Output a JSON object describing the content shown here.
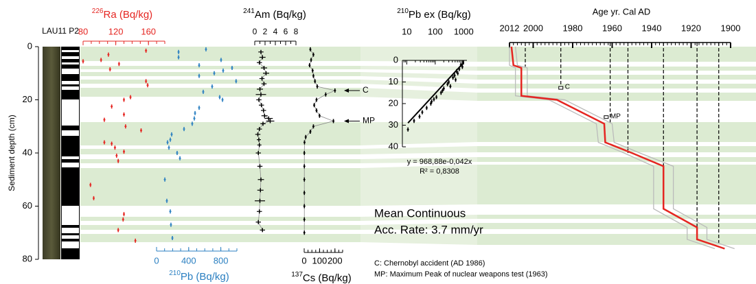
{
  "core_label": "LAU11 P2",
  "depth_axis": {
    "label": "Sediment depth (cm)",
    "lim": [
      0,
      80
    ],
    "ticks": [
      0,
      20,
      40,
      60,
      80
    ]
  },
  "notes": {
    "rate": [
      "Mean Continuous",
      "Acc. Rate: 3.7 mm/yr"
    ],
    "legend": [
      "C: Chernobyl accident (AD 1986)",
      "MP: Maximum Peak of nuclear weapons test (1963)"
    ]
  },
  "chart_data": [
    {
      "type": "scatter",
      "title_sup": "226",
      "title": "Ra (Bq/kg)",
      "color": "#e52521",
      "xlim": [
        80,
        180
      ],
      "xticks": [
        80,
        120,
        160
      ],
      "minor_step": 10,
      "x": [
        157,
        111,
        102,
        80,
        124,
        113,
        157,
        159,
        138,
        130,
        115,
        130,
        106,
        132,
        151,
        106,
        115,
        119,
        130,
        121,
        123,
        89,
        93,
        130,
        129,
        123,
        144
      ],
      "y": [
        1.5,
        3,
        5,
        5.5,
        6.5,
        8.5,
        13,
        14.5,
        19,
        20,
        22.5,
        25.5,
        27.5,
        30,
        31.5,
        36,
        36.5,
        38,
        39.5,
        41,
        43,
        52,
        57,
        63,
        65,
        69,
        73
      ]
    },
    {
      "type": "scatter",
      "title_sup": "210",
      "title": "Pb (Bq/kg)",
      "color": "#2a7fc1",
      "xlim": [
        0,
        1000
      ],
      "xticks": [
        0,
        400,
        800
      ],
      "minor_step": 100,
      "x": [
        615,
        274,
        274,
        803,
        530,
        940,
        829,
        718,
        530,
        990,
        692,
        581,
        786,
        821,
        530,
        479,
        470,
        444,
        342,
        188,
        171,
        137,
        154,
        256,
        291,
        103,
        128,
        171,
        179,
        197
      ],
      "y": [
        1,
        2,
        4,
        5,
        7,
        8,
        9,
        10,
        11,
        13,
        15,
        17,
        19,
        20,
        23,
        25,
        27,
        29,
        31,
        33,
        35,
        36,
        38,
        40,
        42,
        50,
        58,
        62,
        67,
        72
      ]
    },
    {
      "type": "scatter",
      "title_sup": "241",
      "title": "Am (Bq/kg)",
      "color": "#000000",
      "connect": true,
      "xlim": [
        0,
        8
      ],
      "xticks": [
        0,
        2,
        4,
        6,
        8
      ],
      "minor_step": 1,
      "x": [
        1.2,
        1.5,
        0.9,
        1.8,
        2.2,
        1.4,
        1.8,
        1.0,
        1.2,
        0.8,
        1.3,
        1.7,
        1.9,
        2.7,
        3.0,
        1.6,
        0.9,
        0.6,
        0.8,
        0.9,
        0.7,
        1.0,
        1.2,
        1.1,
        1.0,
        0.9,
        0.7,
        1.5
      ],
      "errors": [
        0.5,
        0.6,
        0.5,
        0.6,
        0.6,
        0.5,
        0.5,
        0.6,
        1.0,
        0.5,
        0.5,
        0.5,
        0.6,
        0.8,
        0.8,
        0.5,
        0.5,
        0.5,
        0.4,
        0.4,
        0.5,
        0.5,
        0.6,
        0.6,
        1.0,
        0.5,
        0.5,
        0.5
      ],
      "y": [
        2,
        4,
        6,
        8,
        10,
        12,
        14,
        16,
        18,
        20,
        22,
        24,
        26,
        27,
        28,
        29,
        31,
        33,
        35,
        37,
        40,
        45,
        50,
        54,
        58,
        62,
        66,
        69
      ]
    },
    {
      "type": "scatter",
      "title_sup": "137",
      "title": "Cs (Bq/kg)",
      "color": "#000000",
      "connect": true,
      "xlim": [
        0,
        250
      ],
      "xticks": [
        0,
        100,
        200
      ],
      "minor_step": 25,
      "x": [
        40,
        60,
        45,
        35,
        55,
        60,
        70,
        85,
        200,
        140,
        80,
        65,
        80,
        100,
        190,
        60,
        40,
        10,
        2,
        1,
        1,
        1,
        1,
        1,
        1,
        1
      ],
      "y": [
        1,
        3,
        5,
        7,
        9,
        11,
        13,
        15,
        16.5,
        18,
        20,
        22,
        24,
        26,
        28,
        30,
        32,
        34,
        36,
        40,
        45,
        50,
        55,
        60,
        65,
        70
      ],
      "annotations": [
        {
          "text": "C",
          "y": 16.5
        },
        {
          "text": "MP",
          "y": 28
        }
      ]
    },
    {
      "type": "scatter",
      "title_sup": "210",
      "title": "Pb ex (Bq/kg)",
      "color": "#000000",
      "xscale": "log",
      "log_minor": true,
      "xlim": [
        7,
        1300
      ],
      "xticks": [
        10,
        100,
        1000
      ],
      "ylim": [
        0,
        40
      ],
      "yticks": [
        0,
        10,
        20,
        30,
        40
      ],
      "x": [
        950,
        800,
        900,
        700,
        560,
        620,
        480,
        420,
        520,
        300,
        270,
        340,
        200,
        180,
        160,
        110,
        90,
        75,
        70,
        50,
        35,
        28,
        18,
        11
      ],
      "y": [
        1,
        2,
        3,
        4,
        5,
        6,
        7,
        8,
        9,
        10,
        11,
        12,
        13,
        14,
        15,
        17,
        18,
        19,
        20,
        22,
        24,
        26,
        28,
        32
      ],
      "fit": {
        "x": [
          1000,
          11
        ],
        "y": [
          1,
          29
        ]
      },
      "equation": "y = 968,88e-0,042x",
      "r2": "R² = 0,8308"
    },
    {
      "type": "line",
      "x_label": "Age yr. Cal AD",
      "xlim": [
        2012,
        1900
      ],
      "xticks": [
        2012,
        2000,
        1980,
        1960,
        1940,
        1920,
        1900
      ],
      "minor_step": 2,
      "series": [
        {
          "color": "#bbbbbb",
          "x": [
            2012,
            2012,
            2009,
            2009,
            1992,
            1968,
            1967,
            1954,
            1939,
            1939,
            1922,
            1922,
            1908
          ],
          "y": [
            0,
            7,
            8,
            18.5,
            20,
            29,
            36,
            40,
            45,
            61,
            68,
            72.5,
            76
          ]
        },
        {
          "color": "#bbbbbb",
          "x": [
            2009,
            2008,
            2003,
            2003,
            1984,
            1960,
            1959,
            1946,
            1929,
            1929,
            1912,
            1912,
            1898
          ],
          "y": [
            0,
            7,
            8,
            18.5,
            20,
            29,
            36,
            40,
            45,
            61,
            68,
            72.5,
            76
          ]
        },
        {
          "color": "#e52521",
          "x": [
            2011,
            2010,
            2006,
            2006,
            1988,
            1964,
            1963.5,
            1950,
            1934,
            1934,
            1917,
            1917,
            1903
          ],
          "y": [
            0,
            7,
            8,
            18.5,
            20,
            29,
            36,
            40,
            45,
            61,
            68,
            72.5,
            76
          ]
        }
      ],
      "dashed": {
        "x": [
          2004,
          1986,
          1961,
          1952,
          1934,
          1917,
          1906
        ],
        "y": [
          7.5,
          15.5,
          29,
          40,
          60,
          69,
          74
        ]
      },
      "markers": {
        "labels": [
          "C",
          "MP"
        ],
        "x": [
          1986,
          1963
        ],
        "y": [
          15.5,
          26.5
        ]
      }
    }
  ]
}
